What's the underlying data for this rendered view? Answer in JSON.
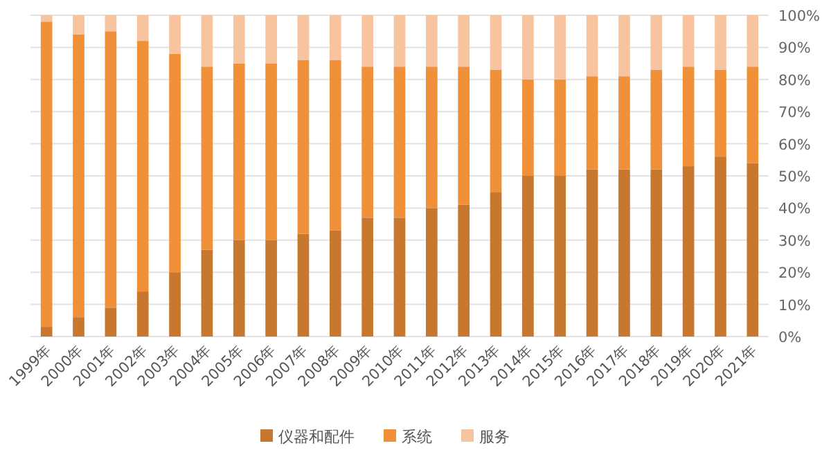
{
  "chart_data": {
    "type": "bar",
    "stacked": true,
    "categories": [
      "1999年",
      "2000年",
      "2001年",
      "2002年",
      "2003年",
      "2004年",
      "2005年",
      "2006年",
      "2007年",
      "2008年",
      "2009年",
      "2010年",
      "2011年",
      "2012年",
      "2013年",
      "2014年",
      "2015年",
      "2016年",
      "2017年",
      "2018年",
      "2019年",
      "2020年",
      "2021年"
    ],
    "series": [
      {
        "name": "仪器和配件",
        "color": "#c8772f",
        "values": [
          3,
          6,
          9,
          14,
          20,
          27,
          30,
          30,
          32,
          33,
          37,
          37,
          40,
          41,
          45,
          50,
          50,
          52,
          52,
          52,
          53,
          56,
          54
        ]
      },
      {
        "name": "系统",
        "color": "#f0913a",
        "values": [
          95,
          88,
          86,
          78,
          68,
          57,
          55,
          55,
          54,
          53,
          47,
          47,
          44,
          43,
          38,
          30,
          30,
          29,
          29,
          31,
          31,
          27,
          30
        ]
      },
      {
        "name": "服务",
        "color": "#f8c4a0",
        "values": [
          2,
          6,
          5,
          8,
          12,
          16,
          15,
          15,
          14,
          14,
          16,
          16,
          16,
          16,
          17,
          20,
          20,
          19,
          19,
          17,
          16,
          17,
          16
        ]
      }
    ],
    "ylim": [
      0,
      100
    ],
    "yticks": [
      {
        "value": 0,
        "label": "0%"
      },
      {
        "value": 10,
        "label": "10%"
      },
      {
        "value": 20,
        "label": "20%"
      },
      {
        "value": 30,
        "label": "30%"
      },
      {
        "value": 40,
        "label": "40%"
      },
      {
        "value": 50,
        "label": "50%"
      },
      {
        "value": 60,
        "label": "60%"
      },
      {
        "value": 70,
        "label": "70%"
      },
      {
        "value": 80,
        "label": "80%"
      },
      {
        "value": 90,
        "label": "90%"
      },
      {
        "value": 100,
        "label": "100%"
      }
    ],
    "grid": "y",
    "legend": "bottom"
  }
}
